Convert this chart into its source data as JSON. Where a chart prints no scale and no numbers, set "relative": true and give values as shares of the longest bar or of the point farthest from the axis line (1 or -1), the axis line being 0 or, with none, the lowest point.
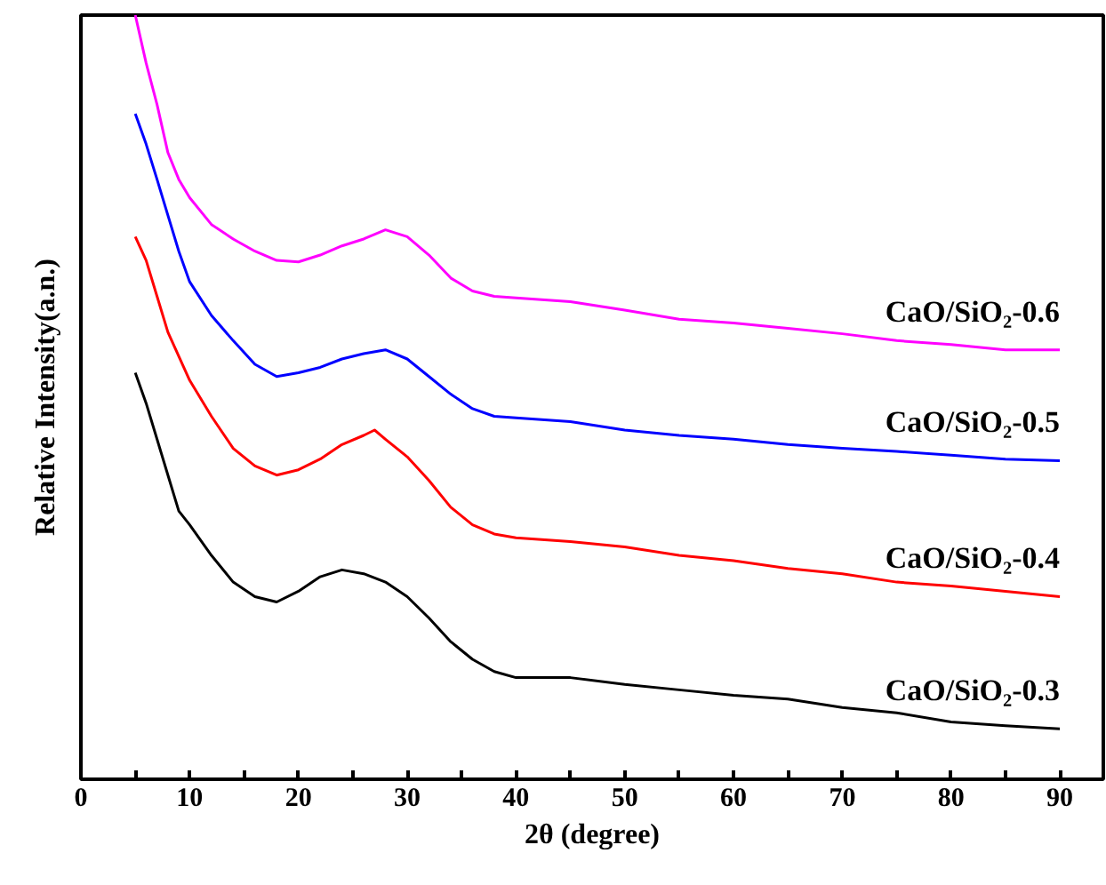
{
  "chart_data": {
    "type": "line",
    "relative": true,
    "xlabel": "2θ (degree)",
    "ylabel": "Relative Intensity(a.n.)",
    "xlim": [
      0,
      94
    ],
    "xticks": [
      0,
      {
        "value": 5,
        "label": null
      },
      10,
      {
        "value": 15,
        "label": null
      },
      20,
      {
        "value": 25,
        "label": null
      },
      30,
      {
        "value": 35,
        "label": null
      },
      40,
      {
        "value": 45,
        "label": null
      },
      50,
      {
        "value": 55,
        "label": null
      },
      60,
      {
        "value": 65,
        "label": null
      },
      70,
      {
        "value": 75,
        "label": null
      },
      80,
      {
        "value": 85,
        "label": null
      },
      90
    ],
    "x": [
      5,
      6,
      7,
      8,
      9,
      10,
      12,
      14,
      16,
      18,
      20,
      22,
      24,
      26,
      28,
      30,
      32,
      34,
      36,
      38,
      40,
      45,
      50,
      55,
      60,
      65,
      70,
      75,
      80,
      85,
      90
    ],
    "grid": false,
    "marker": "none",
    "line_style": "solid",
    "series": [
      {
        "name": "CaO/SiO₂-0.3",
        "color": "#000000",
        "values": [
          0.532,
          0.492,
          0.445,
          0.398,
          0.351,
          0.333,
          0.293,
          0.258,
          0.239,
          0.232,
          0.246,
          0.265,
          0.274,
          0.269,
          0.258,
          0.239,
          0.211,
          0.18,
          0.157,
          0.141,
          0.133,
          0.133,
          0.124,
          0.117,
          0.11,
          0.105,
          0.094,
          0.087,
          0.075,
          0.07,
          0.066
        ]
      },
      {
        "name": "CaO/SiO₂-0.4",
        "color": "#ff0000",
        "x": [
          5,
          6,
          7,
          8,
          10,
          12,
          14,
          16,
          18,
          20,
          22,
          24,
          26,
          27,
          28,
          30,
          32,
          34,
          36,
          38,
          40,
          45,
          50,
          55,
          60,
          65,
          70,
          75,
          80,
          85,
          90
        ],
        "values": [
          0.71,
          0.679,
          0.632,
          0.585,
          0.522,
          0.475,
          0.433,
          0.41,
          0.398,
          0.405,
          0.419,
          0.438,
          0.45,
          0.457,
          0.445,
          0.422,
          0.391,
          0.356,
          0.333,
          0.321,
          0.316,
          0.311,
          0.304,
          0.293,
          0.286,
          0.276,
          0.269,
          0.258,
          0.253,
          0.246,
          0.239
        ]
      },
      {
        "name": "CaO/SiO₂-0.5",
        "color": "#0000ff",
        "values": [
          0.871,
          0.831,
          0.785,
          0.738,
          0.691,
          0.651,
          0.607,
          0.574,
          0.543,
          0.527,
          0.532,
          0.539,
          0.55,
          0.557,
          0.562,
          0.55,
          0.527,
          0.504,
          0.485,
          0.475,
          0.473,
          0.468,
          0.457,
          0.45,
          0.445,
          0.438,
          0.433,
          0.429,
          0.424,
          0.419,
          0.417
        ]
      },
      {
        "name": "CaO/SiO₂-0.6",
        "color": "#ff00ff",
        "values": [
          1.0,
          0.937,
          0.883,
          0.82,
          0.785,
          0.761,
          0.726,
          0.707,
          0.691,
          0.679,
          0.677,
          0.686,
          0.698,
          0.707,
          0.719,
          0.71,
          0.686,
          0.656,
          0.639,
          0.632,
          0.63,
          0.625,
          0.614,
          0.602,
          0.597,
          0.59,
          0.583,
          0.574,
          0.569,
          0.562,
          0.562
        ]
      }
    ]
  }
}
